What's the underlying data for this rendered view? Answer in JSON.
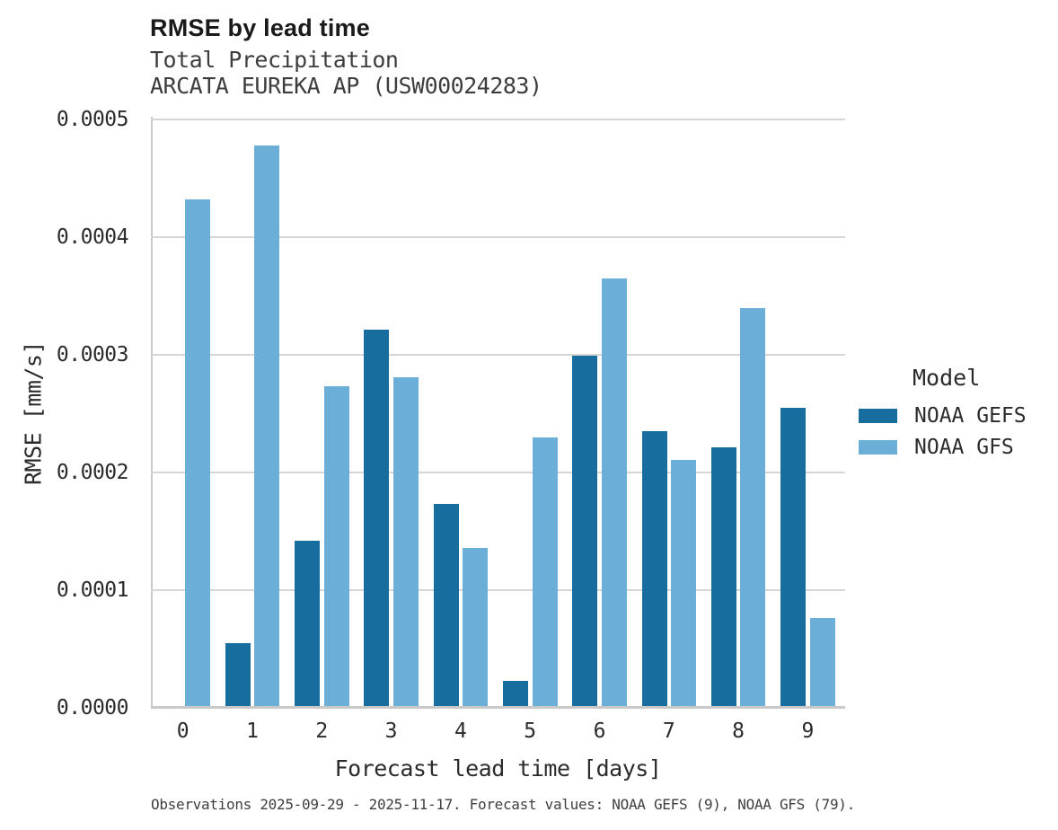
{
  "title": "RMSE by lead time",
  "subtitle_line1": "Total Precipitation",
  "subtitle_line2": "ARCATA EUREKA AP (USW00024283)",
  "caption": "Observations 2025-09-29 - 2025-11-17. Forecast values: NOAA GEFS (9), NOAA GFS (79).",
  "legend": {
    "title": "Model",
    "entries": [
      {
        "label": "NOAA GEFS",
        "color": "#176d9e"
      },
      {
        "label": "NOAA GFS",
        "color": "#6bafd9"
      }
    ]
  },
  "chart_data": {
    "type": "bar",
    "title": "RMSE by lead time",
    "subtitle": [
      "Total Precipitation",
      "ARCATA EUREKA AP (USW00024283)"
    ],
    "xlabel": "Forecast lead time [days]",
    "ylabel": "RMSE [mm/s]",
    "categories": [
      "0",
      "1",
      "2",
      "3",
      "4",
      "5",
      "6",
      "7",
      "8",
      "9"
    ],
    "series": [
      {
        "name": "NOAA GEFS",
        "color": "#176d9e",
        "values": [
          null,
          5.5e-05,
          0.000142,
          0.000321,
          0.000173,
          2.3e-05,
          0.000299,
          0.000235,
          0.000221,
          0.000255
        ]
      },
      {
        "name": "NOAA GFS",
        "color": "#6bafd9",
        "values": [
          0.000432,
          0.000478,
          0.000273,
          0.000281,
          0.000136,
          0.00023,
          0.000365,
          0.000211,
          0.00034,
          7.6e-05
        ]
      }
    ],
    "ylim": [
      0,
      0.0005
    ],
    "yticks": [
      "0.0000",
      "0.0001",
      "0.0002",
      "0.0003",
      "0.0004",
      "0.0005"
    ],
    "grid": true,
    "legend_position": "right",
    "legend_title": "Model"
  }
}
